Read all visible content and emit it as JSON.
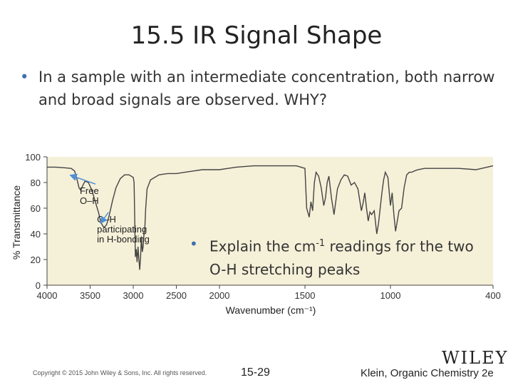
{
  "slide": {
    "title": "15.5 IR Signal Shape",
    "bullet": "In a sample with an intermediate concentration, both narrow and broad signals are observed.  WHY?",
    "inset_bullet_prefix": "Explain the cm",
    "inset_bullet_sup": "-1",
    "inset_bullet_suffix": " readings for the two O-H stretching peaks",
    "publisher_logo": "WILEY",
    "copyright": "Copyright © 2015 John Wiley & Sons, Inc. All rights reserved.",
    "page_number": "15-29",
    "credit": "Klein, Organic Chemistry 2e",
    "colors": {
      "bullet": "#3d6fb0",
      "plot_bg": "#f5f0d8",
      "trace": "#444444",
      "arrow": "#4f8fd6"
    }
  },
  "chart_data": {
    "type": "line",
    "title": "",
    "xlabel": "Wavenumber (cm⁻¹)",
    "ylabel": "% Transmittance",
    "xlim": [
      4000,
      400
    ],
    "ylim": [
      0,
      100
    ],
    "x_ticks": [
      4000,
      3500,
      3000,
      2500,
      2000,
      1500,
      1000,
      400
    ],
    "y_ticks": [
      0,
      20,
      40,
      60,
      80,
      100
    ],
    "grid": false,
    "annotations": [
      {
        "text": "Free\nO–H",
        "x": 3620,
        "y": 71
      },
      {
        "text": "O–H\nparticipating\nin H-bonding",
        "x": 3420,
        "y": 49
      }
    ],
    "series": [
      {
        "x": [
          4000,
          3900,
          3800,
          3720,
          3680,
          3650,
          3630,
          3610,
          3590,
          3560,
          3520,
          3480,
          3440,
          3400,
          3380,
          3360,
          3340,
          3310,
          3280,
          3240,
          3200,
          3150,
          3100,
          3050,
          3000,
          2990,
          2975,
          2965,
          2955,
          2945,
          2935,
          2925,
          2915,
          2905,
          2895,
          2885,
          2875,
          2865,
          2855,
          2840,
          2800,
          2700,
          2600,
          2500,
          2400,
          2300,
          2200,
          2100,
          2000,
          1950,
          1900,
          1800,
          1700,
          1600,
          1550,
          1500,
          1490,
          1475,
          1465,
          1455,
          1445,
          1435,
          1420,
          1405,
          1390,
          1380,
          1370,
          1360,
          1345,
          1330,
          1310,
          1290,
          1270,
          1250,
          1230,
          1210,
          1190,
          1170,
          1160,
          1150,
          1140,
          1130,
          1120,
          1110,
          1095,
          1080,
          1070,
          1060,
          1050,
          1040,
          1030,
          1015,
          1000,
          990,
          980,
          970,
          960,
          950,
          935,
          920,
          905,
          890,
          875,
          860,
          840,
          800,
          700,
          600,
          500,
          400
        ],
        "y": [
          92,
          92,
          91.5,
          91,
          89,
          82,
          76,
          74,
          77,
          81,
          80,
          74,
          65,
          56,
          50,
          47,
          45,
          47,
          54,
          66,
          76,
          83,
          86,
          86,
          84,
          80,
          22,
          28,
          18,
          30,
          20,
          12,
          22,
          38,
          26,
          30,
          40,
          45,
          60,
          75,
          82,
          86,
          87,
          87,
          88,
          89,
          90,
          90,
          90,
          91,
          92,
          93,
          93,
          93,
          93,
          91,
          60,
          53,
          65,
          58,
          80,
          88,
          85,
          76,
          62,
          68,
          80,
          85,
          68,
          55,
          75,
          82,
          86,
          85,
          78,
          80,
          75,
          58,
          64,
          72,
          60,
          50,
          57,
          55,
          58,
          40,
          48,
          60,
          72,
          82,
          88,
          84,
          62,
          72,
          55,
          42,
          50,
          58,
          60,
          76,
          86,
          88,
          88,
          89,
          90,
          91,
          91,
          91,
          90,
          93
        ]
      }
    ]
  }
}
